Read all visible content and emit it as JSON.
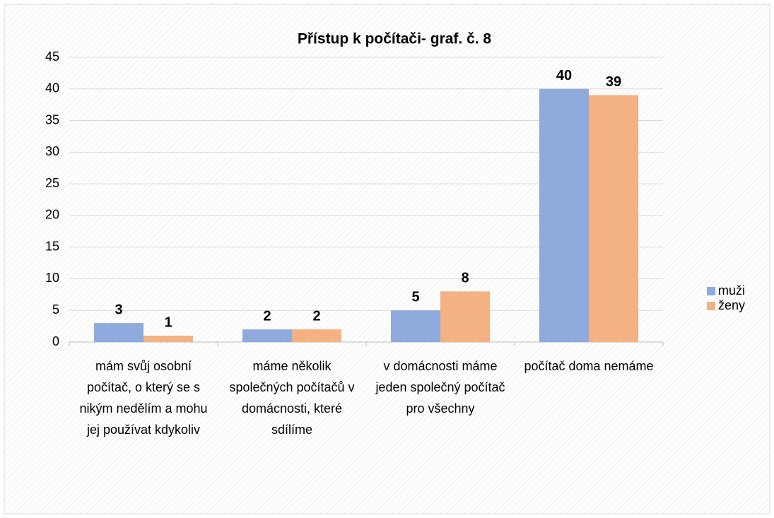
{
  "chart_data": {
    "type": "bar",
    "title": "Přístup k počítači- graf. č. 8",
    "categories": [
      "mám svůj osobní počítač, o který se s nikým nedělím a mohu jej používat kdykoliv",
      "máme několik společných počítačů v domácnosti, které sdílíme",
      "v domácnosti máme jeden společný počítač pro všechny",
      "počítač doma nemáme"
    ],
    "series": [
      {
        "name": "muži",
        "color": "#8faadc",
        "values": [
          3,
          2,
          5,
          40
        ]
      },
      {
        "name": "ženy",
        "color": "#f4b183",
        "values": [
          1,
          2,
          8,
          39
        ]
      }
    ],
    "ylim": [
      0,
      45
    ],
    "yticks": [
      0,
      5,
      10,
      15,
      20,
      25,
      30,
      35,
      40,
      45
    ],
    "grid": true,
    "legend": "right"
  }
}
